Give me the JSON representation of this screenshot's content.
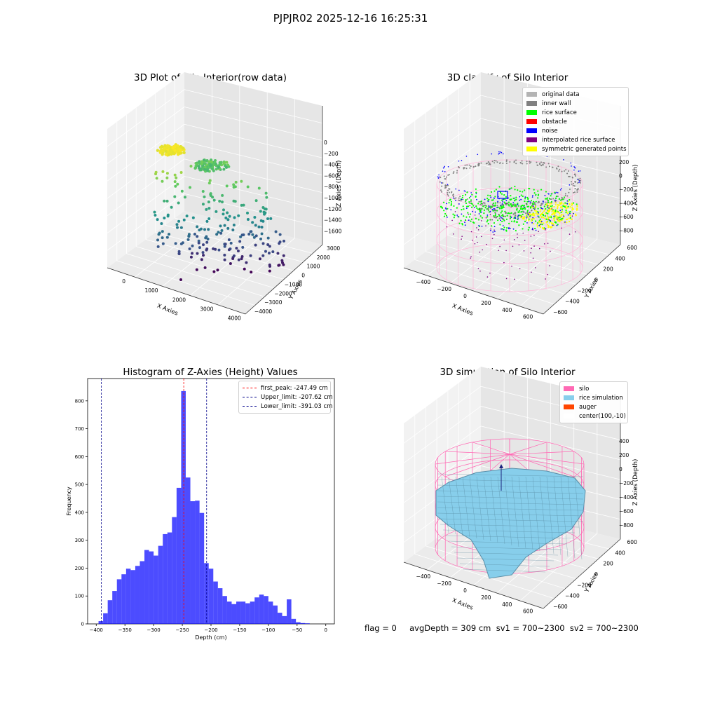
{
  "suptitle": "PJPJR02 2025-12-16 16:25:31",
  "footer": "flag = 0     avgDepth = 309 cm  sv1 = 700~2300  sv2 = 700~2300",
  "panels": {
    "raw": {
      "title": "3D Plot of Silo Interior(row data)",
      "xlabel": "X Axies",
      "ylabel": "Y Axies",
      "zlabel": "Z Axies (Depth)",
      "xticks": [
        "0",
        "1000",
        "2000",
        "3000",
        "4000"
      ],
      "yticks": [
        "−4000",
        "−3000",
        "−2000",
        "−1000",
        "0",
        "1000",
        "2000",
        "3000"
      ],
      "zticks": [
        "0",
        "−200",
        "−400",
        "−600",
        "−800",
        "−1000",
        "−1200",
        "−1400",
        "−1600"
      ]
    },
    "classify": {
      "title": "3D classify of Silo Interior",
      "xlabel": "X Axies",
      "ylabel": "Y Axies",
      "zlabel": "Z Axies (Depth)",
      "xticks": [
        "−400",
        "−200",
        "0",
        "200",
        "400",
        "600"
      ],
      "yticks": [
        "−600",
        "−400",
        "−200",
        "0",
        "200",
        "400",
        "600"
      ],
      "zticks": [
        "200",
        "0",
        "−200",
        "−400",
        "−600",
        "−800"
      ],
      "legend": [
        {
          "label": "original data",
          "color": "#b3b3b3"
        },
        {
          "label": "inner wall",
          "color": "#808080"
        },
        {
          "label": "rice surface",
          "color": "#00ff00"
        },
        {
          "label": "obstacle",
          "color": "#ff0000"
        },
        {
          "label": "noise",
          "color": "#0000ff"
        },
        {
          "label": "interpolated rice surface",
          "color": "#800080"
        },
        {
          "label": "symmetric generated points",
          "color": "#ffff00"
        }
      ]
    },
    "simulation": {
      "title": "3D simulation of Silo Interior",
      "xlabel": "X Axies",
      "ylabel": "Y Axies",
      "zlabel": "Z Axies (Depth)",
      "xticks": [
        "−400",
        "−200",
        "0",
        "200",
        "400",
        "600"
      ],
      "yticks": [
        "−600",
        "−400",
        "−200",
        "0",
        "200",
        "400",
        "600"
      ],
      "zticks": [
        "400",
        "200",
        "0",
        "−200",
        "−400",
        "−600",
        "−800"
      ],
      "legend": [
        {
          "label": "silo",
          "color": "#ff69b4"
        },
        {
          "label": "rice simulation",
          "color": "#87ceeb"
        },
        {
          "label": "auger",
          "color": "#ff4500"
        },
        {
          "label": "center(100,-10)",
          "color": "#ffffff"
        }
      ]
    }
  },
  "chart_data": [
    {
      "type": "bar",
      "title": "Histogram of Z-Axies (Height) Values",
      "xlabel": "Depth (cm)",
      "ylabel": "Frequency",
      "bar_color": "#0000ff",
      "bin_start": -396,
      "bin_width": 8.0,
      "values": [
        10,
        38,
        85,
        118,
        160,
        178,
        198,
        193,
        208,
        225,
        265,
        260,
        245,
        280,
        322,
        328,
        383,
        488,
        835,
        525,
        440,
        442,
        398,
        218,
        198,
        152,
        128,
        100,
        80,
        71,
        80,
        80,
        74,
        80,
        95,
        105,
        100,
        80,
        66,
        40,
        28,
        88,
        18,
        6,
        3,
        2,
        0
      ],
      "xlim": [
        -415,
        15
      ],
      "ylim": [
        0,
        880
      ],
      "xticks": [
        -400,
        -350,
        -300,
        -250,
        -200,
        -150,
        -100,
        -50,
        0
      ],
      "yticks": [
        0,
        100,
        200,
        300,
        400,
        500,
        600,
        700,
        800
      ],
      "vlines": [
        {
          "label": "first_peak: -247.49 cm",
          "x": -247.49,
          "color": "#ff0000"
        },
        {
          "label": "Upper_limit: -207.62 cm",
          "x": -207.62,
          "color": "#00008b"
        },
        {
          "label": "Lower_limit: -391.03 cm",
          "x": -391.03,
          "color": "#00008b"
        }
      ],
      "legend_position": "top-right"
    }
  ]
}
